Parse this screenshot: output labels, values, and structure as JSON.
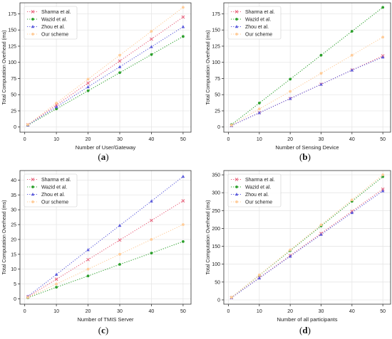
{
  "figure": {
    "panels": [
      {
        "caption": "(a)",
        "caption_letter": "a"
      },
      {
        "caption": "(b)",
        "caption_letter": "b"
      },
      {
        "caption": "(c)",
        "caption_letter": "c"
      },
      {
        "caption": "(d)",
        "caption_letter": "d"
      }
    ]
  },
  "style": {
    "series_colors": [
      "#e8607a",
      "#2ca02c",
      "#5b5bdb",
      "#ffcc99"
    ],
    "series_markers": [
      "x",
      "circle",
      "triangle",
      "circle"
    ],
    "line_style": "dotted",
    "grid_color": "#e6e6e6"
  },
  "chart_data": [
    {
      "type": "line",
      "caption": "(a)",
      "xlabel": "Number of User/Gateway",
      "ylabel": "Total Computation Overhead (ms)",
      "x": [
        1,
        10,
        20,
        30,
        40,
        50
      ],
      "xlim": [
        -1.5,
        52.5
      ],
      "ylim": [
        -8,
        192
      ],
      "xticks": [
        0,
        10,
        20,
        30,
        40,
        50
      ],
      "yticks": [
        0,
        25,
        50,
        75,
        100,
        125,
        150,
        175
      ],
      "grid": true,
      "legend": "upper-left",
      "series": [
        {
          "name": "Sharma et al.",
          "values": [
            3.4,
            34,
            68,
            102,
            136,
            170
          ]
        },
        {
          "name": "Wazid et al.",
          "values": [
            2.8,
            28,
            56,
            84,
            112,
            140
          ]
        },
        {
          "name": "Zhou et al.",
          "values": [
            3.1,
            31,
            62,
            93,
            124,
            155
          ]
        },
        {
          "name": "Our scheme",
          "values": [
            3.7,
            37,
            74,
            111,
            148,
            185
          ]
        }
      ]
    },
    {
      "type": "line",
      "caption": "(b)",
      "xlabel": "Number of Sensing Device",
      "ylabel": "Total Computation Overhead (ms)",
      "x": [
        1,
        10,
        20,
        30,
        40,
        50
      ],
      "xlim": [
        -1.5,
        52.5
      ],
      "ylim": [
        -8,
        192
      ],
      "xticks": [
        0,
        10,
        20,
        30,
        40,
        50
      ],
      "yticks": [
        0,
        25,
        50,
        75,
        100,
        125,
        150,
        175
      ],
      "grid": true,
      "legend": "upper-left",
      "series": [
        {
          "name": "Sharma et al.",
          "values": [
            2.2,
            22,
            44,
            66,
            88,
            110
          ]
        },
        {
          "name": "Wazid et al.",
          "values": [
            3.7,
            37,
            74,
            111,
            148,
            185
          ]
        },
        {
          "name": "Zhou et al.",
          "values": [
            2.2,
            22,
            44,
            66,
            88,
            108
          ]
        },
        {
          "name": "Our scheme",
          "values": [
            2.8,
            28,
            55,
            83,
            111,
            139
          ]
        }
      ]
    },
    {
      "type": "line",
      "caption": "(c)",
      "xlabel": "Number of TMIS Server",
      "ylabel": "Total Computation Overhead (ms)",
      "x": [
        1,
        10,
        20,
        30,
        40,
        50
      ],
      "xlim": [
        -1.5,
        52.5
      ],
      "ylim": [
        -1.8,
        43.2
      ],
      "xticks": [
        0,
        10,
        20,
        30,
        40,
        50
      ],
      "yticks": [
        0,
        5,
        10,
        15,
        20,
        25,
        30,
        35,
        40
      ],
      "grid": true,
      "legend": "upper-left",
      "series": [
        {
          "name": "Sharma et al.",
          "values": [
            0.66,
            6.6,
            13.2,
            19.8,
            26.4,
            33
          ]
        },
        {
          "name": "Wazid et al.",
          "values": [
            0.39,
            3.9,
            7.7,
            11.6,
            15.4,
            19.3
          ]
        },
        {
          "name": "Zhou et al.",
          "values": [
            0.82,
            8.2,
            16.5,
            24.7,
            32.9,
            41.2
          ]
        },
        {
          "name": "Our scheme",
          "values": [
            0.5,
            5,
            10,
            15,
            20,
            25
          ]
        }
      ]
    },
    {
      "type": "line",
      "caption": "(d)",
      "xlabel": "Number of all participants",
      "ylabel": "Total Computation Overhead (ms)",
      "x": [
        1,
        10,
        20,
        30,
        40,
        50
      ],
      "xlim": [
        -1.5,
        52.5
      ],
      "ylim": [
        -12,
        362
      ],
      "xticks": [
        0,
        10,
        20,
        30,
        40,
        50
      ],
      "yticks": [
        0,
        50,
        100,
        150,
        200,
        250,
        300,
        350
      ],
      "grid": true,
      "legend": "upper-left",
      "series": [
        {
          "name": "Sharma et al.",
          "values": [
            6.2,
            62,
            124,
            186,
            248,
            310
          ]
        },
        {
          "name": "Wazid et al.",
          "values": [
            6.9,
            69,
            138,
            207,
            276,
            345
          ]
        },
        {
          "name": "Zhou et al.",
          "values": [
            6.1,
            61,
            122,
            183,
            244,
            305
          ]
        },
        {
          "name": "Our scheme",
          "values": [
            7,
            70,
            140,
            210,
            280,
            350
          ]
        }
      ]
    }
  ]
}
